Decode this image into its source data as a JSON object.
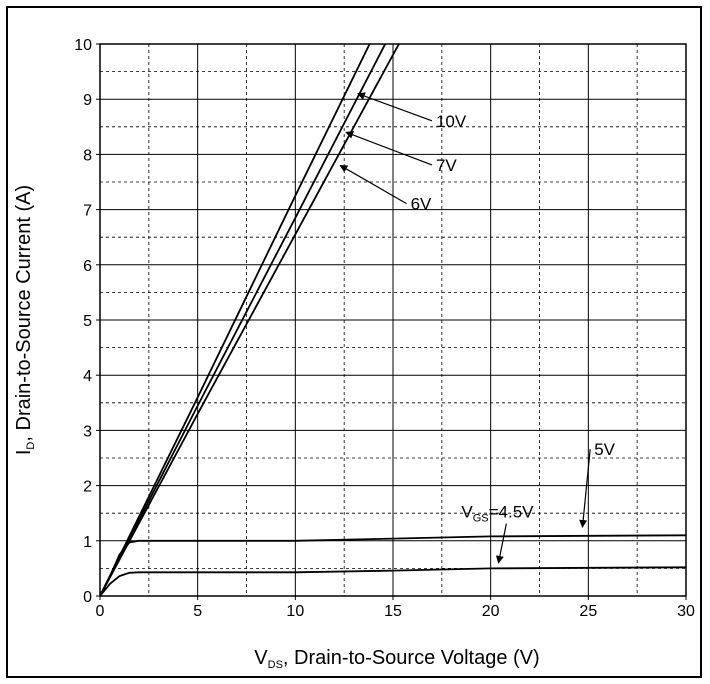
{
  "chart_data": {
    "type": "line",
    "xlabel": {
      "symbol": "V",
      "subscript": "DS",
      "text": ", Drain-to-Source Voltage (V)"
    },
    "ylabel": {
      "symbol": "I",
      "subscript": "D",
      "text": ", Drain-to-Source Current (A)"
    },
    "xlim": [
      0,
      30
    ],
    "ylim": [
      0,
      10
    ],
    "xticks": [
      "0",
      "5",
      "10",
      "15",
      "20",
      "25",
      "30"
    ],
    "yticks": [
      "0",
      "1",
      "2",
      "3",
      "4",
      "5",
      "6",
      "7",
      "8",
      "9",
      "10"
    ],
    "grid": "dashed",
    "series": [
      {
        "name": "10V",
        "x": [
          0,
          5,
          10,
          13.8
        ],
        "y": [
          0,
          3.6,
          7.25,
          10
        ]
      },
      {
        "name": "7V",
        "x": [
          0,
          5,
          10,
          14.6
        ],
        "y": [
          0,
          3.45,
          6.85,
          10
        ]
      },
      {
        "name": "6V",
        "x": [
          0,
          5,
          10,
          15.3
        ],
        "y": [
          0,
          3.3,
          6.55,
          10
        ]
      },
      {
        "name": "5V",
        "x": [
          0,
          0.5,
          1,
          1.5,
          2,
          5,
          10,
          15,
          20,
          30
        ],
        "y": [
          0,
          0.35,
          0.75,
          0.97,
          1.0,
          1.0,
          1.0,
          1.04,
          1.08,
          1.1
        ]
      },
      {
        "name": "4.5V",
        "x": [
          0,
          0.5,
          1,
          1.5,
          2,
          5,
          10,
          15,
          20,
          30
        ],
        "y": [
          0,
          0.22,
          0.36,
          0.42,
          0.43,
          0.43,
          0.43,
          0.46,
          0.5,
          0.52
        ]
      }
    ],
    "annotations": [
      {
        "text": "10V",
        "x": 17.2,
        "y": 8.5,
        "ax": 13.2,
        "ay": 9.1
      },
      {
        "text": "7V",
        "x": 17.2,
        "y": 7.7,
        "ax": 12.6,
        "ay": 8.4
      },
      {
        "text": "6V",
        "x": 15.9,
        "y": 7.0,
        "ax": 12.3,
        "ay": 7.8
      },
      {
        "text": "5V",
        "x": 25.3,
        "y": 2.55,
        "ax": 24.7,
        "ay": 1.25
      },
      {
        "text": "V",
        "sub": "GS",
        "after": "=4.5V",
        "x": 18.5,
        "y": 1.42,
        "ax": 20.4,
        "ay": 0.6
      }
    ]
  }
}
